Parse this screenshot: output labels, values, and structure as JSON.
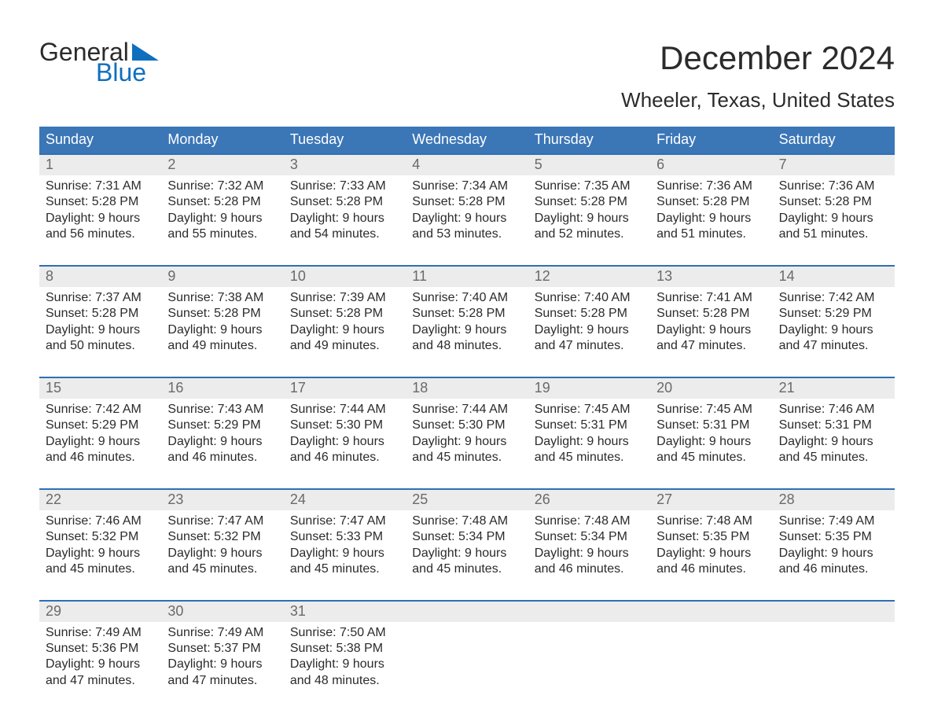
{
  "logo": {
    "word1": "General",
    "word2": "Blue"
  },
  "title": "December 2024",
  "subtitle": "Wheeler, Texas, United States",
  "colors": {
    "header_blue": "#3b76b7",
    "accent_blue": "#2f6fb3",
    "logo_blue": "#0f6fbf",
    "day_row_bg": "#ececec",
    "day_row_text": "#6a6a6a",
    "body_text": "#2b2b2b",
    "page_bg": "#ffffff"
  },
  "weekdays": [
    "Sunday",
    "Monday",
    "Tuesday",
    "Wednesday",
    "Thursday",
    "Friday",
    "Saturday"
  ],
  "weeks": [
    {
      "days": [
        {
          "n": "1",
          "sunrise": "Sunrise: 7:31 AM",
          "sunset": "Sunset: 5:28 PM",
          "d1": "Daylight: 9 hours",
          "d2": "and 56 minutes."
        },
        {
          "n": "2",
          "sunrise": "Sunrise: 7:32 AM",
          "sunset": "Sunset: 5:28 PM",
          "d1": "Daylight: 9 hours",
          "d2": "and 55 minutes."
        },
        {
          "n": "3",
          "sunrise": "Sunrise: 7:33 AM",
          "sunset": "Sunset: 5:28 PM",
          "d1": "Daylight: 9 hours",
          "d2": "and 54 minutes."
        },
        {
          "n": "4",
          "sunrise": "Sunrise: 7:34 AM",
          "sunset": "Sunset: 5:28 PM",
          "d1": "Daylight: 9 hours",
          "d2": "and 53 minutes."
        },
        {
          "n": "5",
          "sunrise": "Sunrise: 7:35 AM",
          "sunset": "Sunset: 5:28 PM",
          "d1": "Daylight: 9 hours",
          "d2": "and 52 minutes."
        },
        {
          "n": "6",
          "sunrise": "Sunrise: 7:36 AM",
          "sunset": "Sunset: 5:28 PM",
          "d1": "Daylight: 9 hours",
          "d2": "and 51 minutes."
        },
        {
          "n": "7",
          "sunrise": "Sunrise: 7:36 AM",
          "sunset": "Sunset: 5:28 PM",
          "d1": "Daylight: 9 hours",
          "d2": "and 51 minutes."
        }
      ]
    },
    {
      "days": [
        {
          "n": "8",
          "sunrise": "Sunrise: 7:37 AM",
          "sunset": "Sunset: 5:28 PM",
          "d1": "Daylight: 9 hours",
          "d2": "and 50 minutes."
        },
        {
          "n": "9",
          "sunrise": "Sunrise: 7:38 AM",
          "sunset": "Sunset: 5:28 PM",
          "d1": "Daylight: 9 hours",
          "d2": "and 49 minutes."
        },
        {
          "n": "10",
          "sunrise": "Sunrise: 7:39 AM",
          "sunset": "Sunset: 5:28 PM",
          "d1": "Daylight: 9 hours",
          "d2": "and 49 minutes."
        },
        {
          "n": "11",
          "sunrise": "Sunrise: 7:40 AM",
          "sunset": "Sunset: 5:28 PM",
          "d1": "Daylight: 9 hours",
          "d2": "and 48 minutes."
        },
        {
          "n": "12",
          "sunrise": "Sunrise: 7:40 AM",
          "sunset": "Sunset: 5:28 PM",
          "d1": "Daylight: 9 hours",
          "d2": "and 47 minutes."
        },
        {
          "n": "13",
          "sunrise": "Sunrise: 7:41 AM",
          "sunset": "Sunset: 5:28 PM",
          "d1": "Daylight: 9 hours",
          "d2": "and 47 minutes."
        },
        {
          "n": "14",
          "sunrise": "Sunrise: 7:42 AM",
          "sunset": "Sunset: 5:29 PM",
          "d1": "Daylight: 9 hours",
          "d2": "and 47 minutes."
        }
      ]
    },
    {
      "days": [
        {
          "n": "15",
          "sunrise": "Sunrise: 7:42 AM",
          "sunset": "Sunset: 5:29 PM",
          "d1": "Daylight: 9 hours",
          "d2": "and 46 minutes."
        },
        {
          "n": "16",
          "sunrise": "Sunrise: 7:43 AM",
          "sunset": "Sunset: 5:29 PM",
          "d1": "Daylight: 9 hours",
          "d2": "and 46 minutes."
        },
        {
          "n": "17",
          "sunrise": "Sunrise: 7:44 AM",
          "sunset": "Sunset: 5:30 PM",
          "d1": "Daylight: 9 hours",
          "d2": "and 46 minutes."
        },
        {
          "n": "18",
          "sunrise": "Sunrise: 7:44 AM",
          "sunset": "Sunset: 5:30 PM",
          "d1": "Daylight: 9 hours",
          "d2": "and 45 minutes."
        },
        {
          "n": "19",
          "sunrise": "Sunrise: 7:45 AM",
          "sunset": "Sunset: 5:31 PM",
          "d1": "Daylight: 9 hours",
          "d2": "and 45 minutes."
        },
        {
          "n": "20",
          "sunrise": "Sunrise: 7:45 AM",
          "sunset": "Sunset: 5:31 PM",
          "d1": "Daylight: 9 hours",
          "d2": "and 45 minutes."
        },
        {
          "n": "21",
          "sunrise": "Sunrise: 7:46 AM",
          "sunset": "Sunset: 5:31 PM",
          "d1": "Daylight: 9 hours",
          "d2": "and 45 minutes."
        }
      ]
    },
    {
      "days": [
        {
          "n": "22",
          "sunrise": "Sunrise: 7:46 AM",
          "sunset": "Sunset: 5:32 PM",
          "d1": "Daylight: 9 hours",
          "d2": "and 45 minutes."
        },
        {
          "n": "23",
          "sunrise": "Sunrise: 7:47 AM",
          "sunset": "Sunset: 5:32 PM",
          "d1": "Daylight: 9 hours",
          "d2": "and 45 minutes."
        },
        {
          "n": "24",
          "sunrise": "Sunrise: 7:47 AM",
          "sunset": "Sunset: 5:33 PM",
          "d1": "Daylight: 9 hours",
          "d2": "and 45 minutes."
        },
        {
          "n": "25",
          "sunrise": "Sunrise: 7:48 AM",
          "sunset": "Sunset: 5:34 PM",
          "d1": "Daylight: 9 hours",
          "d2": "and 45 minutes."
        },
        {
          "n": "26",
          "sunrise": "Sunrise: 7:48 AM",
          "sunset": "Sunset: 5:34 PM",
          "d1": "Daylight: 9 hours",
          "d2": "and 46 minutes."
        },
        {
          "n": "27",
          "sunrise": "Sunrise: 7:48 AM",
          "sunset": "Sunset: 5:35 PM",
          "d1": "Daylight: 9 hours",
          "d2": "and 46 minutes."
        },
        {
          "n": "28",
          "sunrise": "Sunrise: 7:49 AM",
          "sunset": "Sunset: 5:35 PM",
          "d1": "Daylight: 9 hours",
          "d2": "and 46 minutes."
        }
      ]
    },
    {
      "days": [
        {
          "n": "29",
          "sunrise": "Sunrise: 7:49 AM",
          "sunset": "Sunset: 5:36 PM",
          "d1": "Daylight: 9 hours",
          "d2": "and 47 minutes."
        },
        {
          "n": "30",
          "sunrise": "Sunrise: 7:49 AM",
          "sunset": "Sunset: 5:37 PM",
          "d1": "Daylight: 9 hours",
          "d2": "and 47 minutes."
        },
        {
          "n": "31",
          "sunrise": "Sunrise: 7:50 AM",
          "sunset": "Sunset: 5:38 PM",
          "d1": "Daylight: 9 hours",
          "d2": "and 48 minutes."
        },
        null,
        null,
        null,
        null
      ]
    }
  ]
}
